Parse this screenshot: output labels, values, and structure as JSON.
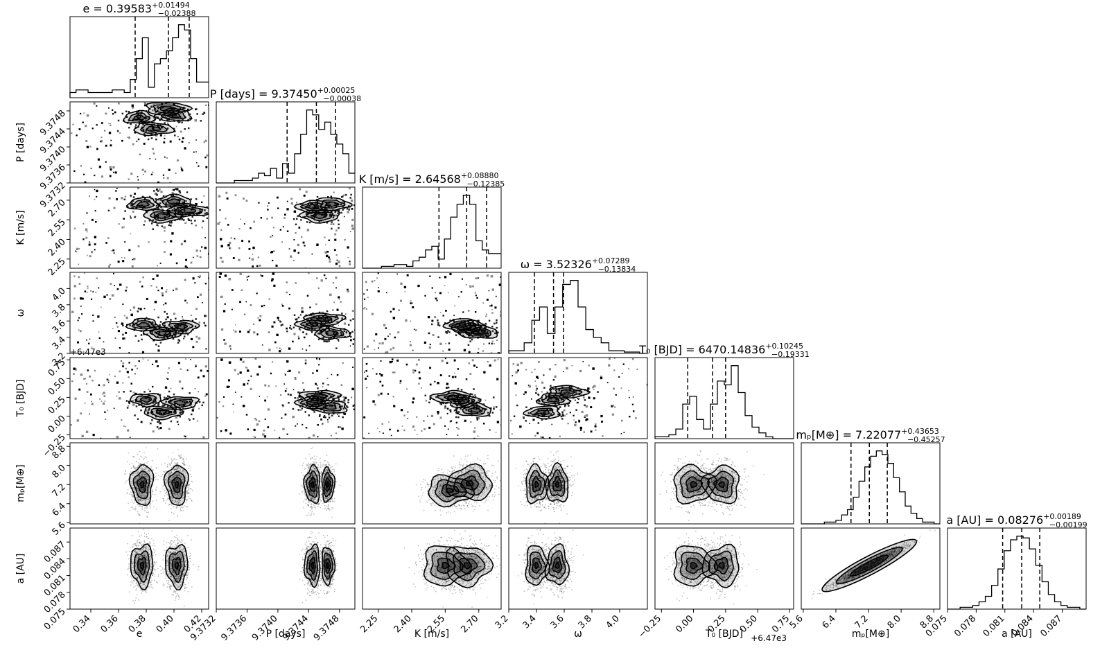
{
  "chart_data": {
    "type": "corner",
    "parameters": [
      {
        "key": "e",
        "label": "e",
        "title_name": "e",
        "median": "0.39583",
        "err_plus": "+0.01494",
        "err_minus": "−0.02388",
        "range": [
          0.325,
          0.425
        ],
        "ticks": [
          0.34,
          0.36,
          0.38,
          0.4,
          0.42
        ],
        "tick_labels": [
          "0.34",
          "0.36",
          "0.38",
          "0.40",
          "0.42"
        ],
        "quantiles": [
          0.372,
          0.396,
          0.411
        ],
        "hist_bins": [
          2,
          3,
          3,
          2,
          2,
          2,
          2,
          3,
          3,
          2,
          7,
          15,
          23,
          4,
          13,
          15,
          18,
          23,
          28,
          26,
          15,
          6,
          6
        ],
        "offset": ""
      },
      {
        "key": "P",
        "label": "P [days]",
        "title_name": "P [days]",
        "median": "9.37450",
        "err_plus": "+0.00025",
        "err_minus": "−0.00038",
        "range": [
          9.3732,
          9.375
        ],
        "ticks": [
          9.3732,
          9.3736,
          9.374,
          9.3744,
          9.3748
        ],
        "tick_labels": [
          "9.3732",
          "9.3736",
          "9.3740",
          "9.3744",
          "9.3748"
        ],
        "quantiles": [
          9.37412,
          9.3745,
          9.37475
        ],
        "hist_bins": [
          0,
          0,
          0,
          1,
          1,
          1,
          2,
          4,
          3,
          6,
          2,
          8,
          4,
          12,
          20,
          30,
          28,
          22,
          25,
          20,
          16,
          12,
          4
        ],
        "offset": ""
      },
      {
        "key": "K",
        "label": "K [m/s]",
        "title_name": "K [m/s]",
        "median": "2.64568",
        "err_plus": "+0.08880",
        "err_minus": "−0.12385",
        "range": [
          2.18,
          2.8
        ],
        "ticks": [
          2.25,
          2.4,
          2.55,
          2.7
        ],
        "tick_labels": [
          "2.25",
          "2.40",
          "2.55",
          "2.70"
        ],
        "quantiles": [
          2.522,
          2.646,
          2.735
        ],
        "hist_bins": [
          0,
          0,
          0,
          1,
          1,
          2,
          2,
          1,
          4,
          6,
          10,
          12,
          5,
          16,
          28,
          35,
          40,
          35,
          15,
          10,
          8,
          8
        ],
        "offset": ""
      },
      {
        "key": "omega",
        "label": "ω",
        "title_name": "ω",
        "median": "3.52326",
        "err_plus": "+0.07289",
        "err_minus": "−0.13834",
        "range": [
          3.2,
          4.2
        ],
        "ticks": [
          3.2,
          3.4,
          3.6,
          3.8,
          4.0
        ],
        "tick_labels": [
          "3.2",
          "3.4",
          "3.6",
          "3.8",
          "4.0"
        ],
        "quantiles": [
          3.385,
          3.523,
          3.596
        ],
        "hist_bins": [
          2,
          2,
          8,
          25,
          35,
          15,
          35,
          52,
          55,
          35,
          18,
          12,
          8,
          2,
          2,
          1,
          1,
          0
        ],
        "offset": ""
      },
      {
        "key": "T0",
        "label": "T₀ [BJD]",
        "title_name": "T₀ [BJD]",
        "median": "6470.14836",
        "err_plus": "+0.10245",
        "err_minus": "−0.19331",
        "range": [
          -0.3,
          0.78
        ],
        "ticks": [
          -0.25,
          0.0,
          0.25,
          0.5,
          0.75
        ],
        "tick_labels": [
          "−0.25",
          "0.00",
          "0.25",
          "0.50",
          "0.75"
        ],
        "quantiles": [
          -0.045,
          0.148,
          0.25
        ],
        "hist_bins": [
          1,
          1,
          2,
          5,
          18,
          22,
          10,
          5,
          18,
          30,
          28,
          38,
          24,
          12,
          6,
          3,
          1,
          0,
          0,
          0
        ],
        "offset": "+6.47e3"
      },
      {
        "key": "mp",
        "label": "mₚ[M⊕]",
        "title_name": "mₚ[M⊕]",
        "median": "7.22077",
        "err_plus": "+0.43653",
        "err_minus": "−0.45257",
        "range": [
          5.55,
          8.95
        ],
        "ticks": [
          5.6,
          6.4,
          7.2,
          8.0,
          8.8
        ],
        "tick_labels": [
          "5.6",
          "6.4",
          "7.2",
          "8.0",
          "8.8"
        ],
        "quantiles": [
          6.77,
          7.22,
          7.66
        ],
        "hist_bins": [
          0,
          0,
          0,
          0,
          1,
          1,
          2,
          5,
          8,
          15,
          24,
          32,
          38,
          41,
          39,
          34,
          26,
          18,
          10,
          6,
          3,
          1,
          1,
          0
        ],
        "offset": ""
      },
      {
        "key": "a",
        "label": "a [AU]",
        "title_name": "a [AU]",
        "median": "0.08276",
        "err_plus": "+0.00189",
        "err_minus": "−0.00199",
        "range": [
          0.075,
          0.0895
        ],
        "ticks": [
          0.075,
          0.078,
          0.081,
          0.084,
          0.087
        ],
        "tick_labels": [
          "0.075",
          "0.078",
          "0.081",
          "0.084",
          "0.087"
        ],
        "quantiles": [
          0.08077,
          0.08276,
          0.08465
        ],
        "hist_bins": [
          0,
          0,
          1,
          1,
          2,
          4,
          7,
          13,
          22,
          32,
          38,
          40,
          39,
          33,
          24,
          15,
          8,
          4,
          2,
          1,
          1,
          0
        ],
        "offset": ""
      }
    ],
    "pairs": [
      {
        "xi": 0,
        "yi": 1,
        "kind": "sparse",
        "clusters": [
          [
            0.375,
            9.37465
          ],
          [
            0.4,
            9.3747
          ],
          [
            0.385,
            9.3744
          ],
          [
            0.395,
            9.37485
          ]
        ]
      },
      {
        "xi": 0,
        "yi": 2,
        "kind": "sparse",
        "clusters": [
          [
            0.378,
            2.67
          ],
          [
            0.4,
            2.69
          ],
          [
            0.392,
            2.58
          ],
          [
            0.41,
            2.62
          ]
        ]
      },
      {
        "xi": 1,
        "yi": 2,
        "kind": "sparse",
        "clusters": [
          [
            9.37445,
            2.65
          ],
          [
            9.3747,
            2.67
          ],
          [
            9.37455,
            2.58
          ]
        ]
      },
      {
        "xi": 0,
        "yi": 3,
        "kind": "sparse",
        "clusters": [
          [
            0.378,
            3.55
          ],
          [
            0.405,
            3.53
          ],
          [
            0.392,
            3.45
          ]
        ]
      },
      {
        "xi": 1,
        "yi": 3,
        "kind": "sparse",
        "clusters": [
          [
            9.37445,
            3.56
          ],
          [
            9.3747,
            3.45
          ],
          [
            9.3746,
            3.62
          ]
        ]
      },
      {
        "xi": 2,
        "yi": 3,
        "kind": "sparse",
        "clusters": [
          [
            2.62,
            3.55
          ],
          [
            2.66,
            3.52
          ],
          [
            2.7,
            3.46
          ]
        ]
      },
      {
        "xi": 0,
        "yi": 4,
        "kind": "sparse",
        "clusters": [
          [
            0.38,
            0.22
          ],
          [
            0.405,
            0.18
          ],
          [
            0.392,
            0.05
          ]
        ]
      },
      {
        "xi": 1,
        "yi": 4,
        "kind": "sparse",
        "clusters": [
          [
            9.37445,
            0.18
          ],
          [
            9.37468,
            0.12
          ],
          [
            9.37455,
            0.26
          ]
        ]
      },
      {
        "xi": 2,
        "yi": 4,
        "kind": "sparse",
        "clusters": [
          [
            2.63,
            0.2
          ],
          [
            2.68,
            0.08
          ],
          [
            2.58,
            0.25
          ]
        ]
      },
      {
        "xi": 3,
        "yi": 4,
        "kind": "sparse",
        "clusters": [
          [
            3.52,
            0.22
          ],
          [
            3.45,
            0.05
          ],
          [
            3.62,
            0.32
          ]
        ]
      },
      {
        "xi": 0,
        "yi": 5,
        "kind": "dense",
        "modes": [
          [
            0.377,
            7.2,
            0.004,
            0.38,
            1.0
          ],
          [
            0.402,
            7.2,
            0.004,
            0.38,
            1.0
          ]
        ]
      },
      {
        "xi": 1,
        "yi": 5,
        "kind": "dense",
        "modes": [
          [
            9.37445,
            7.2,
            5e-05,
            0.35,
            1.0
          ],
          [
            9.37465,
            7.2,
            4e-05,
            0.32,
            0.8
          ]
        ]
      },
      {
        "xi": 2,
        "yi": 5,
        "kind": "dense",
        "modes": [
          [
            2.66,
            7.25,
            0.05,
            0.32,
            1.0
          ],
          [
            2.57,
            6.95,
            0.05,
            0.28,
            0.6
          ]
        ]
      },
      {
        "xi": 3,
        "yi": 5,
        "kind": "dense",
        "modes": [
          [
            3.4,
            7.2,
            0.04,
            0.35,
            0.8
          ],
          [
            3.55,
            7.2,
            0.04,
            0.35,
            1.0
          ]
        ]
      },
      {
        "xi": 4,
        "yi": 5,
        "kind": "dense",
        "modes": [
          [
            0.0,
            7.2,
            0.08,
            0.35,
            0.8
          ],
          [
            0.22,
            7.2,
            0.07,
            0.35,
            1.0
          ]
        ]
      },
      {
        "xi": 0,
        "yi": 6,
        "kind": "dense",
        "modes": [
          [
            0.377,
            0.0828,
            0.004,
            0.0017,
            1.0
          ],
          [
            0.402,
            0.0828,
            0.004,
            0.0017,
            1.0
          ]
        ]
      },
      {
        "xi": 1,
        "yi": 6,
        "kind": "dense",
        "modes": [
          [
            9.37445,
            0.0828,
            5e-05,
            0.0016,
            1.0
          ],
          [
            9.37465,
            0.0828,
            4e-05,
            0.0015,
            0.8
          ]
        ]
      },
      {
        "xi": 2,
        "yi": 6,
        "kind": "dense",
        "modes": [
          [
            2.55,
            0.0828,
            0.05,
            0.0016,
            0.7
          ],
          [
            2.65,
            0.0828,
            0.05,
            0.0016,
            1.0
          ]
        ]
      },
      {
        "xi": 3,
        "yi": 6,
        "kind": "dense",
        "modes": [
          [
            3.4,
            0.0828,
            0.04,
            0.0016,
            0.8
          ],
          [
            3.55,
            0.0828,
            0.04,
            0.0016,
            1.0
          ]
        ]
      },
      {
        "xi": 4,
        "yi": 6,
        "kind": "dense",
        "modes": [
          [
            0.0,
            0.0828,
            0.08,
            0.0016,
            0.8
          ],
          [
            0.22,
            0.0828,
            0.07,
            0.0016,
            1.0
          ]
        ]
      },
      {
        "xi": 5,
        "yi": 6,
        "kind": "correlated",
        "center": [
          7.22,
          0.0828
        ],
        "sx": 0.45,
        "sy": 0.0018,
        "rho": 0.96
      }
    ]
  }
}
